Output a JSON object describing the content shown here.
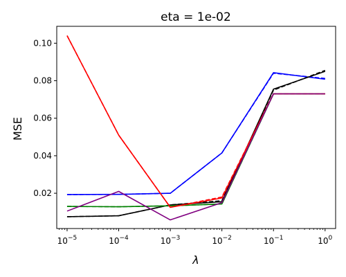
{
  "chart_data": {
    "type": "line",
    "title": "eta = 1e-02",
    "xlabel": "λ",
    "ylabel": "MSE",
    "xscale": "log",
    "xlim": [
      6.3e-06,
      1.6
    ],
    "ylim": [
      0.0012,
      0.109
    ],
    "x": [
      1e-05,
      0.0001,
      0.001,
      0.01,
      0.1,
      1
    ],
    "x_tick_labels": [
      {
        "base": "10",
        "exp": "−5"
      },
      {
        "base": "10",
        "exp": "−4"
      },
      {
        "base": "10",
        "exp": "−3"
      },
      {
        "base": "10",
        "exp": "−2"
      },
      {
        "base": "10",
        "exp": "−1"
      },
      {
        "base": "10",
        "exp": "0"
      }
    ],
    "y_ticks": [
      0.02,
      0.04,
      0.06,
      0.08,
      0.1
    ],
    "y_tick_labels": [
      "0.02",
      "0.04",
      "0.06",
      "0.08",
      "0.10"
    ],
    "grid": false,
    "series": [
      {
        "color": "#0000ff",
        "dash": false,
        "values": [
          0.0193,
          0.0194,
          0.02,
          0.0415,
          0.0843,
          0.0808
        ]
      },
      {
        "color": "#0000ff",
        "dash": true,
        "values": [
          0.0193,
          0.0194,
          0.02,
          0.0415,
          0.084,
          0.0812
        ]
      },
      {
        "color": "#000000",
        "dash": false,
        "values": [
          0.0075,
          0.008,
          0.0138,
          0.0155,
          0.0755,
          0.085
        ]
      },
      {
        "color": "#000000",
        "dash": true,
        "values": [
          0.0075,
          0.008,
          0.0138,
          0.016,
          0.075,
          0.0855
        ]
      },
      {
        "color": "#008000",
        "dash": false,
        "values": [
          0.013,
          0.0128,
          0.0133,
          0.0143,
          0.073,
          0.073
        ]
      },
      {
        "color": "#008000",
        "dash": true,
        "values": [
          0.013,
          0.0128,
          0.0133,
          0.0143,
          0.073,
          0.073
        ]
      },
      {
        "color": "#ff0000",
        "dash": false,
        "values": [
          0.104,
          0.051,
          0.0125,
          0.0175,
          0.073,
          0.073
        ]
      },
      {
        "color": "#ff0000",
        "dash": true,
        "values": [
          0.104,
          0.051,
          0.0125,
          0.018,
          0.073,
          0.073
        ]
      },
      {
        "color": "#800080",
        "dash": false,
        "values": [
          0.0105,
          0.021,
          0.0058,
          0.015,
          0.073,
          0.073
        ]
      }
    ]
  }
}
